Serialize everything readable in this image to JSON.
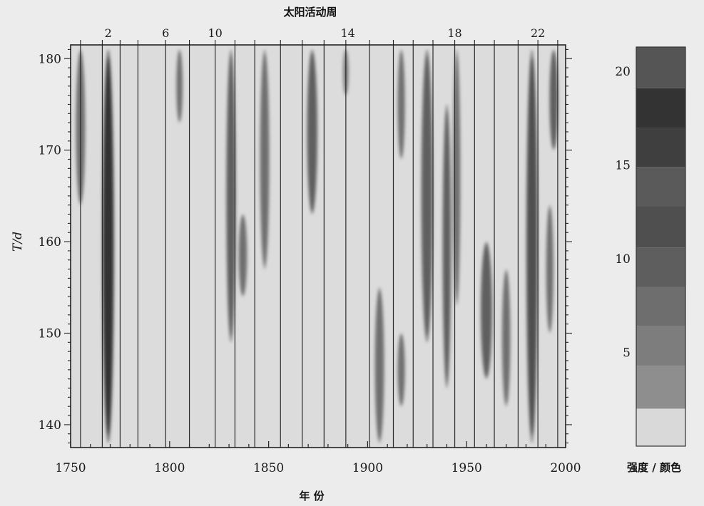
{
  "chart_data": {
    "type": "heatmap",
    "title": "太阳活动周",
    "xlabel": "年 份",
    "ylabel": "T/d",
    "xlim": [
      1750,
      2000
    ],
    "ylim": [
      137.5,
      181.5
    ],
    "x_ticks": [
      1750,
      1800,
      1850,
      1900,
      1950,
      2000
    ],
    "y_ticks": [
      140,
      150,
      160,
      170,
      180
    ],
    "top_ticks": [
      2,
      6,
      10,
      14,
      18,
      22
    ],
    "top_tick_years": [
      1769,
      1798,
      1823,
      1890,
      1944,
      1986
    ],
    "cycle_boundaries": [
      1755,
      1766,
      1775,
      1784,
      1798,
      1810,
      1823,
      1833,
      1843,
      1856,
      1867,
      1878,
      1889,
      1901,
      1913,
      1923,
      1933,
      1944,
      1954,
      1964,
      1976,
      1986,
      1996
    ],
    "colorbar": {
      "label": "强度 / 颜色",
      "ticks": [
        5,
        10,
        15,
        20
      ],
      "range": [
        0,
        21.3
      ],
      "levels": [
        0,
        2,
        4.3,
        6.4,
        8.5,
        10.6,
        12.8,
        14.9,
        17,
        19.1,
        21.3
      ],
      "colors": [
        "#d9d9d9",
        "#8e8e8e",
        "#7d7d7d",
        "#6e6e6e",
        "#5e5e5e",
        "#4f4f4f",
        "#5a5a5a",
        "#3f3f3f",
        "#333333",
        "#555555",
        "#1e1e1e"
      ]
    },
    "features": [
      {
        "x": 1755,
        "y0": 164,
        "y1": 181,
        "width": 4,
        "intensity": 8
      },
      {
        "x": 1769,
        "y0": 138,
        "y1": 181,
        "width": 5,
        "intensity": 17
      },
      {
        "x": 1805,
        "y0": 173,
        "y1": 181,
        "width": 2.5,
        "intensity": 7
      },
      {
        "x": 1831,
        "y0": 149,
        "y1": 181,
        "width": 4,
        "intensity": 9
      },
      {
        "x": 1837,
        "y0": 154,
        "y1": 163,
        "width": 3.5,
        "intensity": 8
      },
      {
        "x": 1848,
        "y0": 157,
        "y1": 181,
        "width": 4,
        "intensity": 8
      },
      {
        "x": 1872,
        "y0": 163,
        "y1": 181,
        "width": 4.5,
        "intensity": 9
      },
      {
        "x": 1889,
        "y0": 176,
        "y1": 181,
        "width": 2,
        "intensity": 6
      },
      {
        "x": 1906,
        "y0": 138,
        "y1": 155,
        "width": 4,
        "intensity": 8
      },
      {
        "x": 1917,
        "y0": 169,
        "y1": 181,
        "width": 3,
        "intensity": 8
      },
      {
        "x": 1917,
        "y0": 142,
        "y1": 150,
        "width": 3,
        "intensity": 7
      },
      {
        "x": 1930,
        "y0": 149,
        "y1": 181,
        "width": 5,
        "intensity": 10
      },
      {
        "x": 1940,
        "y0": 144,
        "y1": 175,
        "width": 3.5,
        "intensity": 9
      },
      {
        "x": 1945,
        "y0": 153,
        "y1": 181,
        "width": 3,
        "intensity": 8
      },
      {
        "x": 1960,
        "y0": 145,
        "y1": 160,
        "width": 5,
        "intensity": 9
      },
      {
        "x": 1970,
        "y0": 142,
        "y1": 157,
        "width": 3.5,
        "intensity": 8
      },
      {
        "x": 1983,
        "y0": 138,
        "y1": 181,
        "width": 5,
        "intensity": 11
      },
      {
        "x": 1992,
        "y0": 150,
        "y1": 164,
        "width": 3,
        "intensity": 8
      },
      {
        "x": 1994,
        "y0": 170,
        "y1": 181,
        "width": 3.5,
        "intensity": 9
      }
    ]
  }
}
